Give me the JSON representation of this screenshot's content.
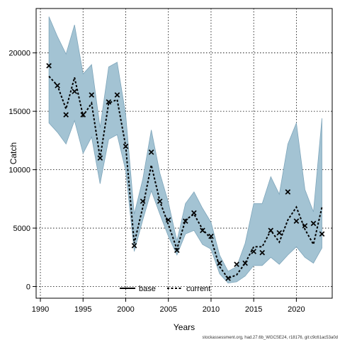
{
  "chart_data": {
    "type": "line",
    "xlabel": "Years",
    "ylabel": "Catch",
    "xlim": [
      1989.5,
      2024.2
    ],
    "ylim": [
      -1000,
      23800
    ],
    "xticks": [
      1990,
      1995,
      2000,
      2005,
      2010,
      2015,
      2020
    ],
    "yticks": [
      0,
      5000,
      10000,
      15000,
      20000
    ],
    "grid": true,
    "legend": "bottom-center",
    "band_color": "#a3c3d3",
    "band_edge_color": "#7fa6bb",
    "years": [
      1991,
      1992,
      1993,
      1994,
      1995,
      1996,
      1997,
      1998,
      1999,
      2000,
      2001,
      2002,
      2003,
      2004,
      2005,
      2006,
      2007,
      2008,
      2009,
      2010,
      2011,
      2012,
      2013,
      2014,
      2015,
      2016,
      2017,
      2018,
      2019,
      2020,
      2021,
      2022,
      2023
    ],
    "band_upper": [
      23100,
      21400,
      19900,
      22400,
      18200,
      19000,
      13600,
      18800,
      19200,
      14700,
      6200,
      9200,
      13400,
      9700,
      7200,
      3900,
      7100,
      8100,
      6700,
      5500,
      2700,
      1300,
      1700,
      3700,
      7100,
      7100,
      9400,
      7900,
      12200,
      14000,
      8300,
      6400,
      14400
    ],
    "band_lower": [
      14000,
      13200,
      12200,
      14200,
      11400,
      12800,
      8800,
      12600,
      13000,
      9900,
      3000,
      5700,
      8200,
      6200,
      4300,
      2700,
      4500,
      4800,
      3600,
      3200,
      1100,
      300,
      400,
      900,
      1800,
      1800,
      2500,
      1900,
      2700,
      3400,
      2500,
      2000,
      3300
    ],
    "series": [
      {
        "name": "base",
        "style": "solid",
        "color": "#000000",
        "values": []
      },
      {
        "name": "current",
        "style": "dashed",
        "color": "#000000",
        "values": [
          18000,
          17200,
          15200,
          17900,
          14600,
          15700,
          11000,
          15700,
          16000,
          12000,
          3700,
          6800,
          10400,
          7300,
          5300,
          3200,
          5700,
          6200,
          4900,
          4100,
          1700,
          700,
          1000,
          2000,
          3400,
          3400,
          4800,
          3800,
          5700,
          6800,
          4900,
          3600,
          6800
        ]
      }
    ],
    "observed": {
      "marker": "x",
      "values": [
        18900,
        17200,
        14700,
        16700,
        14700,
        16400,
        11000,
        15800,
        16400,
        12000,
        3500,
        7300,
        11500,
        7300,
        5700,
        3100,
        5600,
        6300,
        4800,
        4300,
        2000,
        700,
        1900,
        2000,
        3000,
        2900,
        4800,
        4600,
        8100,
        5600,
        5200,
        5400,
        4500
      ]
    },
    "footer": "stockassessment.org, had.27.6b_WGCSE24, r18176, git:c9c61ac53a0d"
  }
}
